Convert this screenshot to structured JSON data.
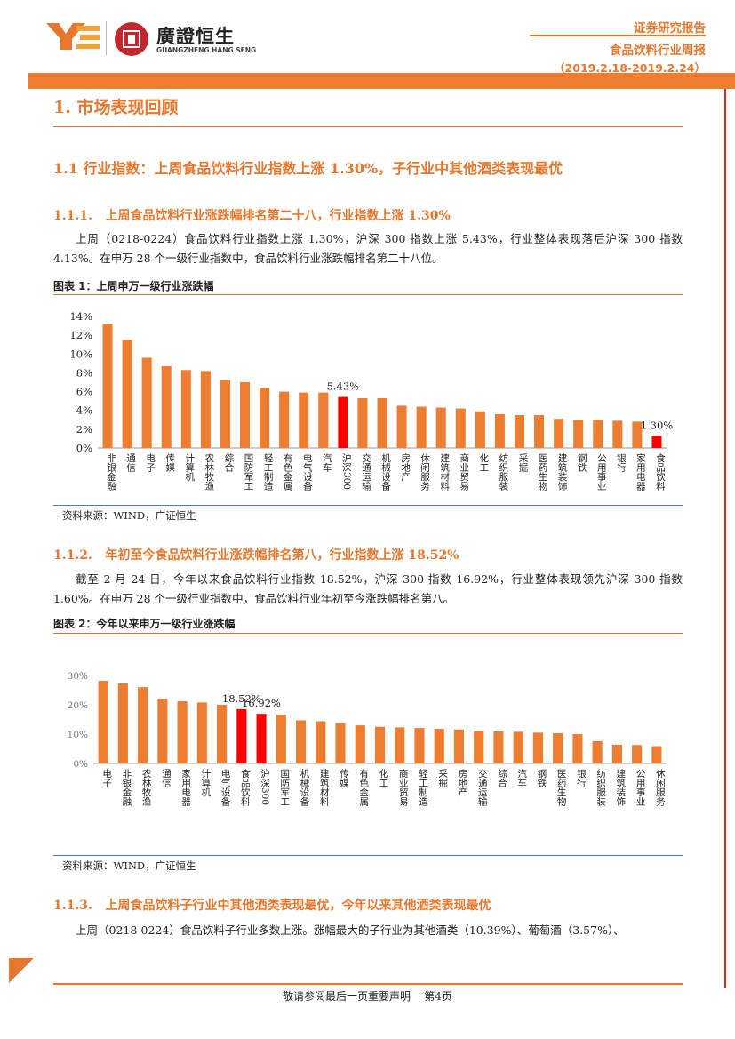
{
  "header": {
    "brand_cn": "廣證恒生",
    "brand_en": "GUANGZHENG HANG SENG",
    "report_type": "证券研究报告",
    "report_name": "食品饮料行业周报",
    "date_range": "（2019.2.18-2019.2.24）"
  },
  "section1": {
    "title": "1. 市场表现回顾"
  },
  "section1_1": {
    "title": "1.1 行业指数：上周食品饮料行业指数上涨 1.30%，子行业中其他酒类表现最优"
  },
  "section1_1_1": {
    "title": "1.1.1.   上周食品饮料行业涨跌幅排名第二十八，行业指数上涨 1.30%",
    "body": "上周（0218-0224）食品饮料行业指数上涨 1.30%，沪深 300 指数上涨 5.43%，行业整体表现落后沪深 300 指数 4.13%。在申万 28 个一级行业指数中，食品饮料行业涨跌幅排名第二十八位。"
  },
  "figure1": {
    "title": "图表 1：上周申万一级行业涨跌幅",
    "source": "资料来源：WIND，广证恒生"
  },
  "section1_1_2": {
    "title": "1.1.2.   年初至今食品饮料行业涨跌幅排名第八，行业指数上涨 18.52%",
    "body": "截至 2 月 24 日，今年以来食品饮料行业指数 18.52%，沪深 300 指数 16.92%，行业整体表现领先沪深 300 指数 1.60%。在申万 28 个一级行业指数中，食品饮料行业年初至今涨跌幅排名第八。"
  },
  "figure2": {
    "title": "图表 2：今年以来申万一级行业涨跌幅",
    "source": "资料来源：WIND，广证恒生"
  },
  "section1_1_3": {
    "title": "1.1.3.   上周食品饮料子行业中其他酒类表现最优，今年以来其他酒类表现最优",
    "body": "上周（0218-0224）食品饮料子行业多数上涨。涨幅最大的子行业为其他酒类（10.39%）、葡萄酒（3.57%）、"
  },
  "footer": {
    "text": "敬请参阅最后一页重要声明    第4页"
  },
  "colors": {
    "accent": "#e8772e",
    "highlight": "#ff0000",
    "bar": "#ed7d31"
  },
  "chart_data": [
    {
      "type": "bar",
      "categories": [
        "非银金融",
        "通信",
        "电子",
        "传媒",
        "计算机",
        "农林牧渔",
        "综合",
        "国防军工",
        "轻工制造",
        "有色金属",
        "电气设备",
        "汽车",
        "沪深300",
        "交通运输",
        "机械设备",
        "房地产",
        "休闲服务",
        "建筑材料",
        "商业贸易",
        "化工",
        "纺织服装",
        "采掘",
        "医药生物",
        "建筑装饰",
        "钢铁",
        "公用事业",
        "银行",
        "家用电器",
        "食品饮料"
      ],
      "values": [
        13.2,
        11.5,
        9.6,
        8.7,
        8.3,
        8.2,
        7.2,
        7.0,
        6.4,
        6.0,
        5.9,
        5.9,
        5.43,
        5.3,
        5.3,
        4.5,
        4.4,
        4.3,
        4.2,
        3.9,
        3.6,
        3.5,
        3.5,
        3.1,
        3.0,
        3.0,
        2.9,
        2.8,
        1.3
      ],
      "highlight": [
        "沪深300",
        "食品饮料"
      ],
      "data_labels": [
        {
          "category": "沪深300",
          "text": "5.43%"
        },
        {
          "category": "食品饮料",
          "text": "1.30%"
        }
      ],
      "yticks": [
        "0%",
        "2%",
        "4%",
        "6%",
        "8%",
        "10%",
        "12%",
        "14%"
      ],
      "ylim": [
        0,
        14
      ],
      "title": "",
      "xlabel": "",
      "ylabel": "",
      "grid": false
    },
    {
      "type": "bar",
      "categories": [
        "电子",
        "非银金融",
        "农林牧渔",
        "通信",
        "家用电器",
        "计算机",
        "电气设备",
        "食品饮料",
        "沪深300",
        "国防军工",
        "机械设备",
        "建筑材料",
        "传媒",
        "有色金属",
        "化工",
        "商业贸易",
        "轻工制造",
        "采掘",
        "房地产",
        "交通运输",
        "综合",
        "汽车",
        "钢铁",
        "医药生物",
        "银行",
        "纺织服装",
        "建筑装饰",
        "公用事业",
        "休闲服务"
      ],
      "values": [
        28.2,
        27.3,
        26.0,
        22.1,
        21.2,
        20.8,
        20.0,
        18.52,
        16.92,
        16.6,
        14.7,
        14.4,
        13.8,
        13.0,
        12.5,
        12.3,
        12.1,
        11.8,
        11.6,
        11.2,
        10.9,
        10.8,
        10.5,
        10.3,
        10.0,
        7.6,
        6.4,
        6.3,
        5.9
      ],
      "highlight": [
        "食品饮料",
        "沪深300"
      ],
      "data_labels": [
        {
          "category": "食品饮料",
          "text": "18.52%"
        },
        {
          "category": "沪深300",
          "text": "16.92%"
        }
      ],
      "yticks": [
        "0%",
        "10%",
        "20%",
        "30%"
      ],
      "ylim": [
        0,
        30
      ],
      "title": "",
      "xlabel": "",
      "ylabel": "",
      "grid": false
    }
  ]
}
